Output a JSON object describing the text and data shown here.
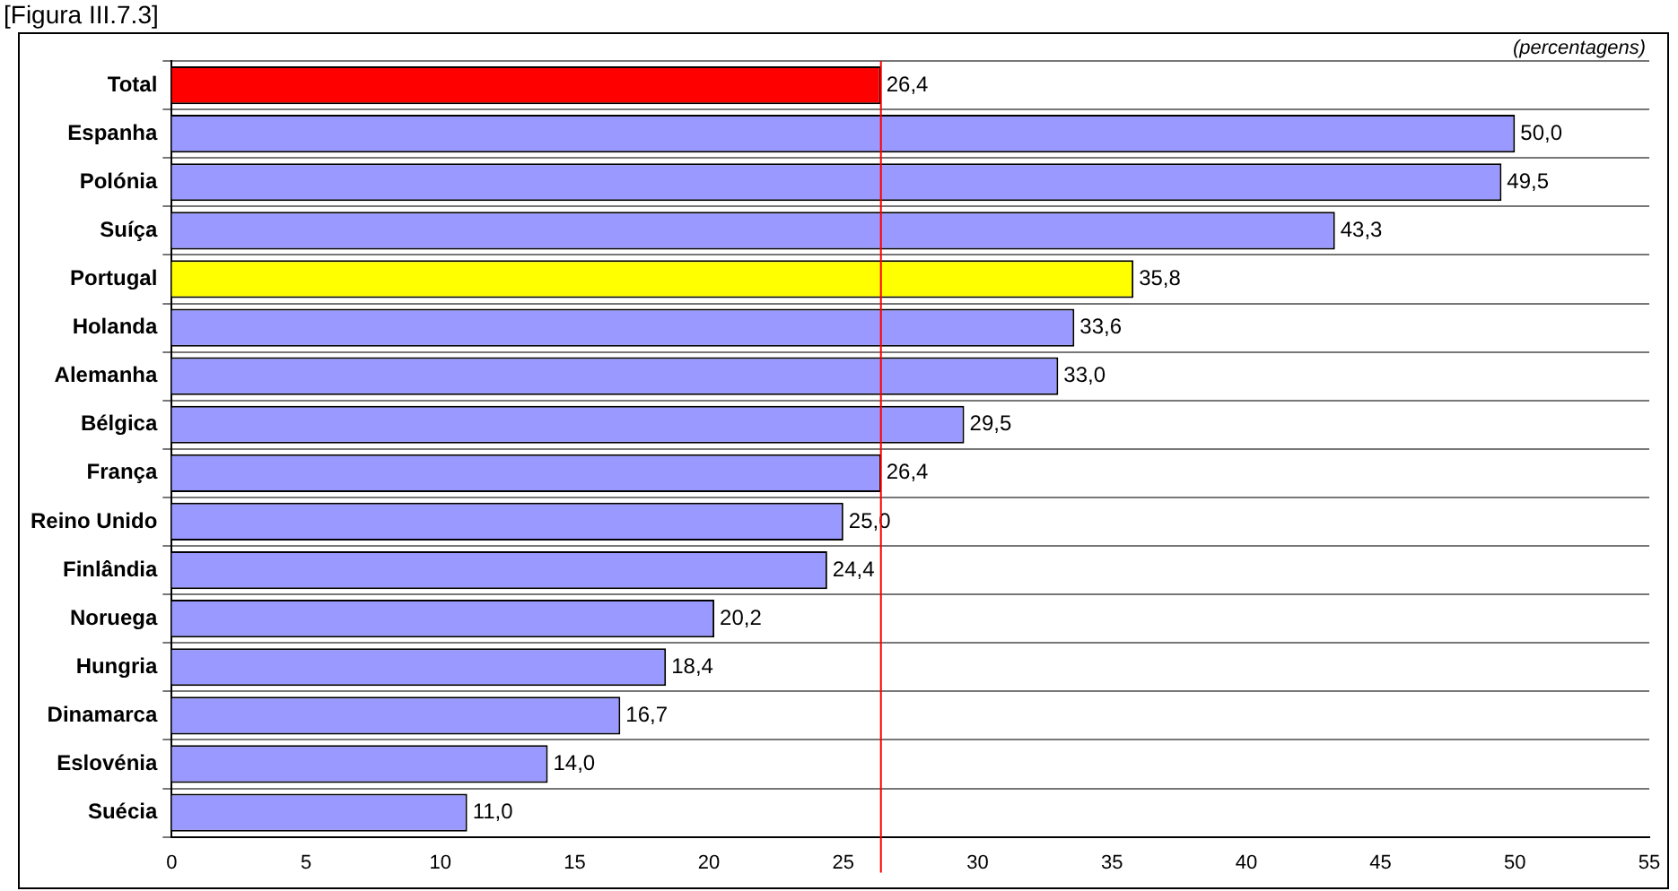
{
  "chart_data": {
    "type": "bar",
    "orientation": "horizontal",
    "title": "[Figura III.7.3]",
    "categories": [
      "Total",
      "Espanha",
      "Polónia",
      "Suíça",
      "Portugal",
      "Holanda",
      "Alemanha",
      "Bélgica",
      "França",
      "Reino Unido",
      "Finlândia",
      "Noruega",
      "Hungria",
      "Dinamarca",
      "Eslovénia",
      "Suécia"
    ],
    "values": [
      26.4,
      50.0,
      49.5,
      43.3,
      35.8,
      33.6,
      33.0,
      29.5,
      26.4,
      25.0,
      24.4,
      20.2,
      18.4,
      16.7,
      14.0,
      11.0
    ],
    "value_labels": [
      "26,4",
      "50,0",
      "49,5",
      "43,3",
      "35,8",
      "33,6",
      "33,0",
      "29,5",
      "26,4",
      "25,0",
      "24,4",
      "20,2",
      "18,4",
      "16,7",
      "14,0",
      "11,0"
    ],
    "colors": [
      "#ff0000",
      "#9999ff",
      "#9999ff",
      "#9999ff",
      "#ffff00",
      "#9999ff",
      "#9999ff",
      "#9999ff",
      "#9999ff",
      "#9999ff",
      "#9999ff",
      "#9999ff",
      "#9999ff",
      "#9999ff",
      "#9999ff",
      "#9999ff"
    ],
    "xlim": [
      0,
      55
    ],
    "xticks": [
      0,
      5,
      10,
      15,
      20,
      25,
      30,
      35,
      40,
      45,
      50,
      55
    ],
    "grid": "y",
    "legend": false,
    "ref_lines": [
      {
        "axis": "x",
        "value": 26.4,
        "color": "#ff0000"
      }
    ],
    "annotations": [
      "(percentagens)"
    ]
  }
}
